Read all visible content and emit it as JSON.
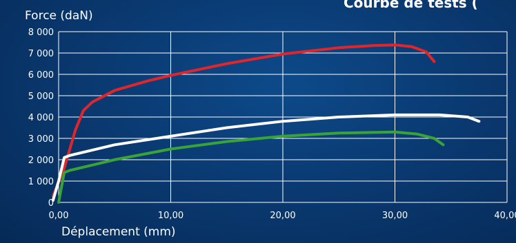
{
  "chart_data": {
    "type": "line",
    "title": "Courbe de tests (",
    "ylabel": "Force (daN)",
    "xlabel": "Déplacement (mm)",
    "xlim": [
      0,
      40
    ],
    "ylim": [
      0,
      8000
    ],
    "x_ticks": [
      0,
      10,
      20,
      30,
      40
    ],
    "x_tick_labels": [
      "0,00",
      "10,00",
      "20,00",
      "30,00",
      "40,00"
    ],
    "y_ticks": [
      0,
      1000,
      2000,
      3000,
      4000,
      5000,
      6000,
      7000,
      8000
    ],
    "y_tick_labels": [
      "0",
      "1 000",
      "2 000",
      "3 000",
      "4 000",
      "5 000",
      "6 000",
      "7 000",
      "8 000"
    ],
    "grid": true,
    "series": [
      {
        "color": "#e0262b",
        "points": [
          [
            -0.5,
            300
          ],
          [
            0.5,
            1600
          ],
          [
            1.5,
            3400
          ],
          [
            2.2,
            4300
          ],
          [
            3,
            4700
          ],
          [
            5,
            5250
          ],
          [
            8,
            5700
          ],
          [
            10,
            5950
          ],
          [
            15,
            6500
          ],
          [
            20,
            6950
          ],
          [
            25,
            7250
          ],
          [
            28,
            7350
          ],
          [
            30,
            7380
          ],
          [
            31.5,
            7300
          ],
          [
            32.8,
            7050
          ],
          [
            33.5,
            6600
          ]
        ]
      },
      {
        "color": "#ffffff",
        "points": [
          [
            -0.5,
            100
          ],
          [
            0,
            1000
          ],
          [
            0.5,
            2100
          ],
          [
            1,
            2200
          ],
          [
            3,
            2450
          ],
          [
            5,
            2700
          ],
          [
            10,
            3100
          ],
          [
            15,
            3500
          ],
          [
            20,
            3800
          ],
          [
            25,
            4000
          ],
          [
            30,
            4100
          ],
          [
            34,
            4100
          ],
          [
            36.5,
            4000
          ],
          [
            37.5,
            3800
          ]
        ]
      },
      {
        "color": "#3aa335",
        "points": [
          [
            0,
            0
          ],
          [
            0.5,
            1400
          ],
          [
            1,
            1500
          ],
          [
            3,
            1750
          ],
          [
            5,
            2000
          ],
          [
            10,
            2500
          ],
          [
            15,
            2850
          ],
          [
            20,
            3100
          ],
          [
            25,
            3250
          ],
          [
            30,
            3300
          ],
          [
            32,
            3200
          ],
          [
            33.5,
            3000
          ],
          [
            34.3,
            2700
          ]
        ]
      }
    ]
  }
}
